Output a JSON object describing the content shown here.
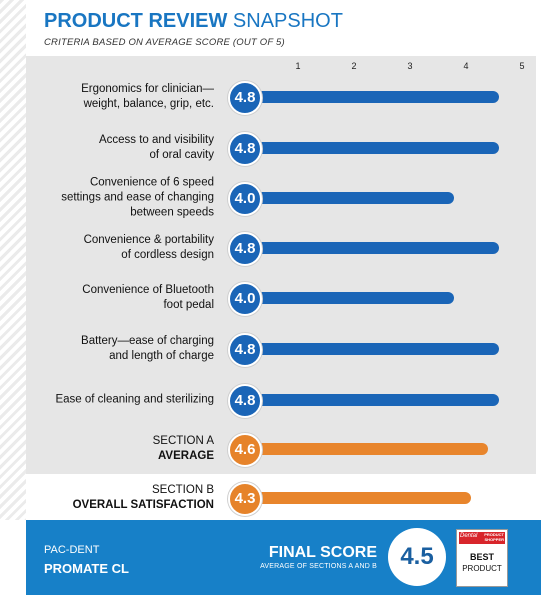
{
  "header": {
    "title_bold": "PRODUCT REVIEW",
    "title_light": "SNAPSHOT",
    "subtitle": "CRITERIA BASED ON AVERAGE SCORE (OUT OF 5)"
  },
  "colors": {
    "blue": "#1a65b7",
    "orange": "#e8852c",
    "badge_blue": "#1a65b7",
    "badge_orange": "#e6832a",
    "footer": "#1780c8"
  },
  "chart_data": {
    "type": "bar",
    "orientation": "horizontal",
    "title": "PRODUCT REVIEW SNAPSHOT",
    "subtitle": "CRITERIA BASED ON AVERAGE SCORE (OUT OF 5)",
    "xlim": [
      0,
      5
    ],
    "ticks": [
      "1",
      "2",
      "3",
      "4",
      "5"
    ],
    "rows": [
      {
        "label1": "Ergonomics for clinician—",
        "label2": "weight, balance, grip, etc.",
        "value": 4.8,
        "display": "4.8",
        "color": "blue"
      },
      {
        "label1": "Access to and visibility",
        "label2": "of oral cavity",
        "value": 4.8,
        "display": "4.8",
        "color": "blue"
      },
      {
        "label1": "Convenience of 6 speed",
        "label2": "settings and ease of changing",
        "label3": "between speeds",
        "value": 4.0,
        "display": "4.0",
        "color": "blue"
      },
      {
        "label1": "Convenience & portability",
        "label2": "of cordless design",
        "value": 4.8,
        "display": "4.8",
        "color": "blue"
      },
      {
        "label1": "Convenience of Bluetooth",
        "label2": "foot pedal",
        "value": 4.0,
        "display": "4.0",
        "color": "blue"
      },
      {
        "label1": "Battery—ease of charging",
        "label2": "and length of charge",
        "value": 4.8,
        "display": "4.8",
        "color": "blue"
      },
      {
        "label1": "Ease of cleaning and sterilizing",
        "value": 4.8,
        "display": "4.8",
        "color": "blue"
      },
      {
        "label1": "SECTION A",
        "label2": "AVERAGE",
        "value": 4.6,
        "display": "4.6",
        "color": "orange",
        "summary": true
      },
      {
        "label1": "SECTION B",
        "label2": "OVERALL SATISFACTION",
        "value": 4.3,
        "display": "4.3",
        "color": "orange",
        "summary": true
      }
    ]
  },
  "footer": {
    "brand_line1": "PAC-DENT",
    "brand_line2": "PROMATE CL",
    "final_label": "FINAL SCORE",
    "final_sub": "AVERAGE OF SECTIONS A AND B",
    "final_value": "4.5",
    "seal_line1": "Dental",
    "seal_line2a": "PRODUCT",
    "seal_line2b": "SHOPPER",
    "seal_best": "BEST",
    "seal_product": "PRODUCT"
  }
}
